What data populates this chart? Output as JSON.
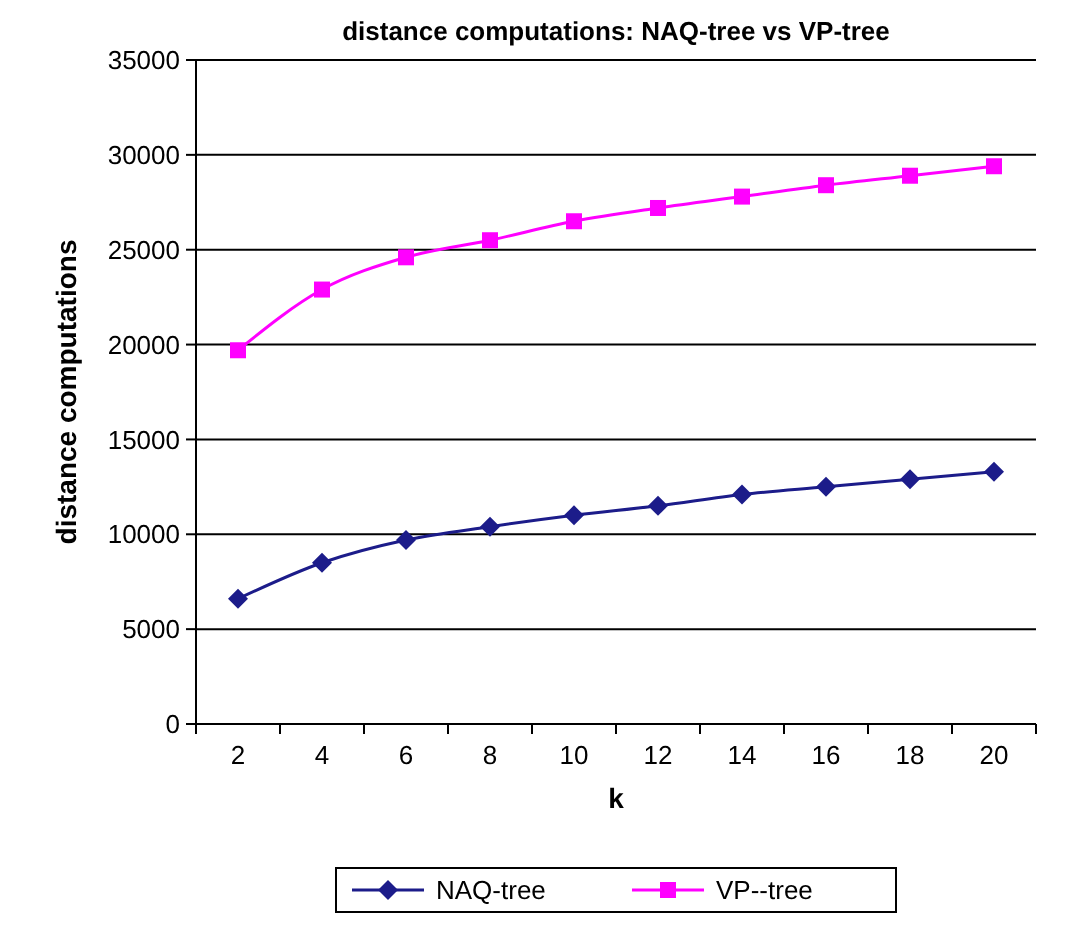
{
  "chart_data": {
    "type": "line",
    "title": "distance computations: NAQ-tree   vs   VP-tree",
    "xlabel": "k",
    "ylabel": "distance computations",
    "categories": [
      "2",
      "4",
      "6",
      "8",
      "10",
      "12",
      "14",
      "16",
      "18",
      "20"
    ],
    "series": [
      {
        "name": "NAQ-tree",
        "color": "#1c1c8a",
        "marker": "diamond",
        "values": [
          6600,
          8500,
          9700,
          10400,
          11000,
          11500,
          12100,
          12500,
          12900,
          13300
        ]
      },
      {
        "name": "VP--tree",
        "color": "#ff00ff",
        "marker": "square",
        "values": [
          19700,
          22900,
          24600,
          25500,
          26500,
          27200,
          27800,
          28400,
          28900,
          29400
        ]
      }
    ],
    "ylim": [
      0,
      35000
    ],
    "yticks": [
      0,
      5000,
      10000,
      15000,
      20000,
      25000,
      30000,
      35000
    ],
    "grid": "y",
    "legend": "bottom",
    "line_style": "solid"
  }
}
